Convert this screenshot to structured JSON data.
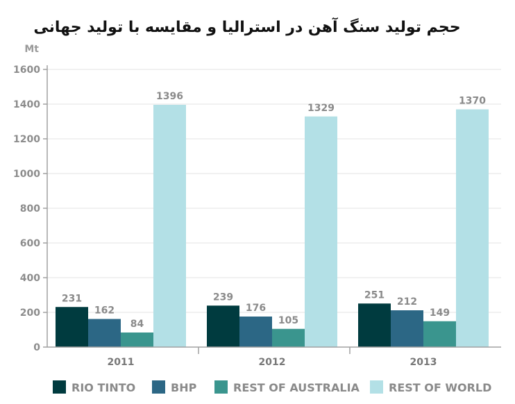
{
  "chart_data": {
    "type": "bar",
    "title": "حجم تولید سنگ آهن در استرالیا و مقایسه با تولید جهانی",
    "ylabel": "Mt",
    "xlabel": "",
    "ylim": [
      0,
      1600
    ],
    "yticks": [
      0,
      200,
      400,
      600,
      800,
      1000,
      1200,
      1400,
      1600
    ],
    "grid": true,
    "legend_position": "bottom",
    "categories": [
      "2011",
      "2012",
      "2013"
    ],
    "series": [
      {
        "name": "RIO TINTO",
        "color": "#003b3f",
        "values": [
          231,
          239,
          251
        ]
      },
      {
        "name": "BHP",
        "color": "#2c6785",
        "values": [
          162,
          176,
          212
        ]
      },
      {
        "name": "REST OF AUSTRALIA",
        "color": "#3a958e",
        "values": [
          84,
          105,
          149
        ]
      },
      {
        "name": "REST OF WORLD",
        "color": "#b3e0e6",
        "values": [
          1396,
          1329,
          1370
        ]
      }
    ]
  }
}
